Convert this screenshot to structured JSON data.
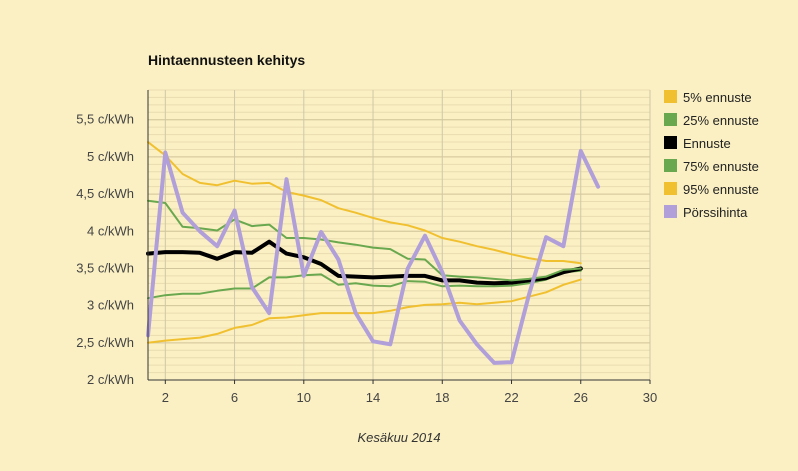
{
  "chart_data": {
    "type": "line",
    "title": "Hintaennusteen kehitys",
    "xlabel": "Kesäkuu 2014",
    "ylabel": "",
    "xlim": [
      1,
      30
    ],
    "ylim": [
      2,
      5.9
    ],
    "grid": true,
    "legend_position": "right",
    "x_ticks": [
      2,
      6,
      10,
      14,
      18,
      22,
      26,
      30
    ],
    "y_ticks": [
      {
        "value": 2,
        "label": "2 c/kWh"
      },
      {
        "value": 2.5,
        "label": "2,5 c/kWh"
      },
      {
        "value": 3,
        "label": "3 c/kWh"
      },
      {
        "value": 3.5,
        "label": "3,5 c/kWh"
      },
      {
        "value": 4,
        "label": "4 c/kWh"
      },
      {
        "value": 4.5,
        "label": "4,5 c/kWh"
      },
      {
        "value": 5,
        "label": "5 c/kWh"
      },
      {
        "value": 5.5,
        "label": "5,5 c/kWh"
      }
    ],
    "series": [
      {
        "name": "5% ennuste",
        "color": "#f0c030",
        "width": 2,
        "x": [
          1,
          2,
          3,
          4,
          5,
          6,
          7,
          8,
          9,
          10,
          11,
          12,
          13,
          14,
          15,
          16,
          17,
          18,
          19,
          20,
          21,
          22,
          23,
          24,
          25,
          26
        ],
        "values": [
          2.5,
          2.53,
          2.55,
          2.57,
          2.62,
          2.7,
          2.74,
          2.83,
          2.84,
          2.87,
          2.9,
          2.9,
          2.9,
          2.9,
          2.93,
          2.98,
          3.01,
          3.02,
          3.04,
          3.02,
          3.04,
          3.06,
          3.12,
          3.18,
          3.28,
          3.35
        ]
      },
      {
        "name": "25% ennuste",
        "color": "#6aa84f",
        "width": 2,
        "x": [
          1,
          2,
          3,
          4,
          5,
          6,
          7,
          8,
          9,
          10,
          11,
          12,
          13,
          14,
          15,
          16,
          17,
          18,
          19,
          20,
          21,
          22,
          23,
          24,
          25,
          26
        ],
        "values": [
          3.1,
          3.14,
          3.16,
          3.16,
          3.2,
          3.23,
          3.23,
          3.38,
          3.38,
          3.41,
          3.42,
          3.28,
          3.3,
          3.27,
          3.26,
          3.33,
          3.32,
          3.26,
          3.27,
          3.26,
          3.26,
          3.27,
          3.3,
          3.35,
          3.45,
          3.47
        ]
      },
      {
        "name": "Ennuste",
        "color": "#000000",
        "width": 4,
        "x": [
          1,
          2,
          3,
          4,
          5,
          6,
          7,
          8,
          9,
          10,
          11,
          12,
          13,
          14,
          15,
          16,
          17,
          18,
          19,
          20,
          21,
          22,
          23,
          24,
          25,
          26
        ],
        "values": [
          3.7,
          3.72,
          3.72,
          3.71,
          3.63,
          3.72,
          3.71,
          3.86,
          3.7,
          3.65,
          3.56,
          3.4,
          3.39,
          3.38,
          3.39,
          3.4,
          3.4,
          3.34,
          3.34,
          3.31,
          3.3,
          3.31,
          3.34,
          3.37,
          3.45,
          3.5
        ]
      },
      {
        "name": "75% ennuste",
        "color": "#6aa84f",
        "width": 2,
        "x": [
          1,
          2,
          3,
          4,
          5,
          6,
          7,
          8,
          9,
          10,
          11,
          12,
          13,
          14,
          15,
          16,
          17,
          18,
          19,
          20,
          21,
          22,
          23,
          24,
          25,
          26
        ],
        "values": [
          4.41,
          4.38,
          4.06,
          4.04,
          4.01,
          4.16,
          4.07,
          4.09,
          3.91,
          3.91,
          3.89,
          3.85,
          3.82,
          3.78,
          3.76,
          3.63,
          3.62,
          3.41,
          3.39,
          3.38,
          3.36,
          3.34,
          3.36,
          3.39,
          3.48,
          3.5
        ]
      },
      {
        "name": "95% ennuste",
        "color": "#f0c030",
        "width": 2,
        "x": [
          1,
          2,
          3,
          4,
          5,
          6,
          7,
          8,
          9,
          10,
          11,
          12,
          13,
          14,
          15,
          16,
          17,
          18,
          19,
          20,
          21,
          22,
          23,
          24,
          25,
          26
        ],
        "values": [
          5.2,
          5.02,
          4.77,
          4.65,
          4.62,
          4.68,
          4.64,
          4.65,
          4.53,
          4.48,
          4.42,
          4.31,
          4.25,
          4.18,
          4.12,
          4.08,
          4.01,
          3.91,
          3.86,
          3.8,
          3.75,
          3.69,
          3.64,
          3.6,
          3.6,
          3.57
        ]
      },
      {
        "name": "Pörssihinta",
        "color": "#b19fd9",
        "width": 4,
        "x": [
          1,
          2,
          3,
          4,
          5,
          6,
          7,
          8,
          9,
          10,
          11,
          12,
          13,
          14,
          15,
          16,
          17,
          18,
          19,
          20,
          21,
          22,
          23,
          24,
          25,
          26,
          27
        ],
        "values": [
          2.6,
          5.06,
          4.25,
          4.0,
          3.8,
          4.28,
          3.25,
          2.9,
          4.7,
          3.4,
          3.99,
          3.62,
          2.9,
          2.52,
          2.48,
          3.5,
          3.94,
          3.45,
          2.8,
          2.48,
          2.23,
          2.24,
          3.14,
          3.92,
          3.8,
          5.08,
          4.6
        ]
      }
    ]
  }
}
